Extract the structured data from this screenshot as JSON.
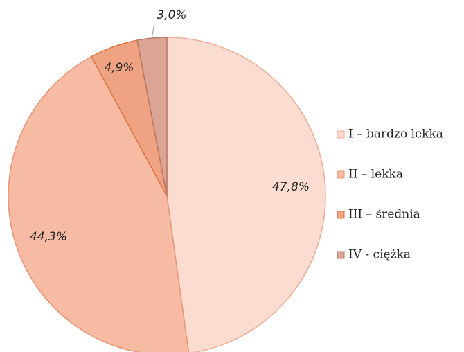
{
  "chart_data": {
    "type": "pie",
    "categories": [
      "I – bardzo lekka",
      "II – lekka",
      "III – średnia",
      "IV - ciężka"
    ],
    "values": [
      47.8,
      44.3,
      4.9,
      3.0
    ],
    "value_labels": [
      "47,8%",
      "44,3%",
      "4,9%",
      "3,0%"
    ],
    "colors": [
      "#fadcd1",
      "#f7bba3",
      "#efa382",
      "#dba595"
    ],
    "legend": "right"
  }
}
